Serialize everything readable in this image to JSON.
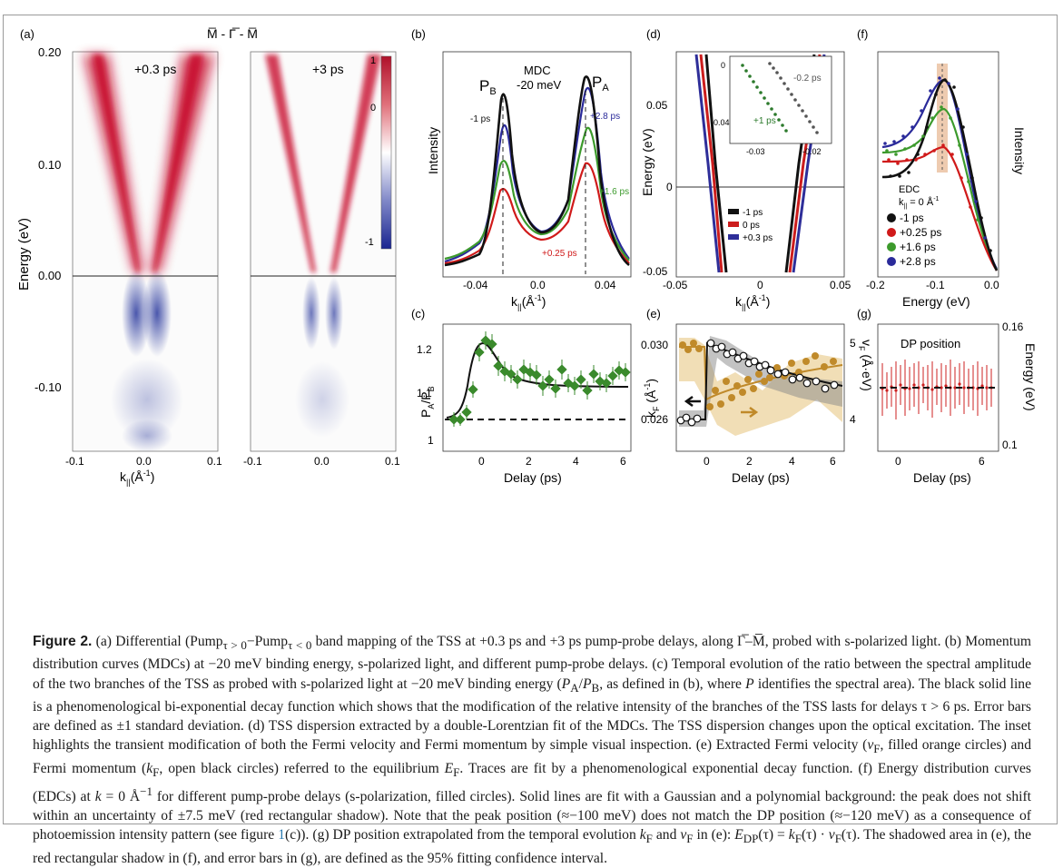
{
  "figure": {
    "panel_a": {
      "label": "(a)",
      "path_label": "M̅ - Γ̅ - M̅",
      "ylabel": "Energy (eV)",
      "xlabel": "k",
      "xlabel_sub": "||",
      "xlabel_unit": "(Å",
      "xlabel_unit_sup": "-1",
      "xlabel_unit_end": ")",
      "left_map_title": "+0.3 ps",
      "right_map_title": "+3 ps",
      "yticks": [
        "0.20",
        "0.10",
        "0.00",
        "-0.10"
      ],
      "xticks_left": [
        "-0.1",
        "0.0",
        "0.1"
      ],
      "xticks_right": [
        "-0.1",
        "0.0",
        "0.1"
      ],
      "colorbar_ticks": [
        "1",
        "0",
        "-1"
      ],
      "colors": {
        "positive": "#c8102e",
        "negative": "#2b3a9e"
      }
    },
    "panel_b": {
      "label": "(b)",
      "ylabel": "Intensity",
      "title_line1": "MDC",
      "title_line2": "-20 meV",
      "peak_left": "P",
      "peak_left_sub": "B",
      "peak_right": "P",
      "peak_right_sub": "A",
      "xlabel": "k",
      "xlabel_sub": "||",
      "xlabel_unit": "(Å",
      "xlabel_unit_sup": "-1",
      "xlabel_unit_end": ")",
      "xticks": [
        "-0.04",
        "0.0",
        "0.04"
      ],
      "annotations": [
        {
          "text": "-1 ps",
          "color": "#111111"
        },
        {
          "text": "+2.8 ps",
          "color": "#2a2a9a"
        },
        {
          "text": "+1.6 ps",
          "color": "#3c9a2c"
        },
        {
          "text": "+0.25 ps",
          "color": "#d01a1a"
        }
      ]
    },
    "panel_c": {
      "label": "(c)",
      "ylabel": "P",
      "ylabel_sub_a": "A",
      "ylabel_div": "/P",
      "ylabel_sub_b": "B",
      "xlabel": "Delay (ps)",
      "xticks": [
        "0",
        "2",
        "4",
        "6"
      ],
      "yticks": [
        "1.2",
        "1.1",
        "1"
      ],
      "colors": {
        "points": "#3a8a2c",
        "fit": "#1a1a1a"
      }
    },
    "panel_d": {
      "label": "(d)",
      "ylabel": "Energy (eV)",
      "xlabel": "k",
      "xlabel_sub": "||",
      "xlabel_unit": "(Å",
      "xlabel_unit_sup": "-1",
      "xlabel_unit_end": ")",
      "xticks": [
        "-0.05",
        "0",
        "0.05"
      ],
      "yticks": [
        "0.05",
        "0",
        "-0.05"
      ],
      "legend": [
        {
          "text": "-1 ps",
          "color": "#111111"
        },
        {
          "text": "0 ps",
          "color": "#cc1d1d"
        },
        {
          "text": "+0.3 ps",
          "color": "#2e2e99"
        }
      ],
      "inset": {
        "xticks": [
          "-0.03",
          "-0.02"
        ],
        "yticks": [
          "0",
          "-0.04"
        ],
        "labels": [
          {
            "text": "-0.2 ps",
            "color": "#555555"
          },
          {
            "text": "+1 ps",
            "color": "#2c7a2c"
          }
        ]
      }
    },
    "panel_e": {
      "label": "(e)",
      "ylabel_left": "k",
      "ylabel_left_sub": "F",
      "ylabel_left_unit": " (Å",
      "ylabel_left_sup": "-1",
      "ylabel_left_end": ")",
      "ylabel_right": "v",
      "ylabel_right_sub": "F",
      "ylabel_right_unit": " (Å·eV)",
      "xlabel": "Delay (ps)",
      "xticks": [
        "0",
        "2",
        "4",
        "6"
      ],
      "yticks_left": [
        "0.030",
        "0.026"
      ],
      "yticks_right": [
        "5",
        "4"
      ],
      "colors": {
        "vf": "#c08a2a",
        "kf": "#111111"
      }
    },
    "panel_f": {
      "label": "(f)",
      "ylabel": "Intensity",
      "xlabel": "Energy (eV)",
      "xticks": [
        "-0.2",
        "-0.1",
        "0.0"
      ],
      "legend_title": "EDC",
      "legend_subtitle": "k",
      "legend_subtitle_sub": "||",
      "legend_subtitle_rest": " = 0 Å",
      "legend_subtitle_sup": "-1",
      "legend": [
        {
          "text": "-1 ps",
          "color": "#111111"
        },
        {
          "text": "+0.25 ps",
          "color": "#d01a1a"
        },
        {
          "text": "+1.6 ps",
          "color": "#3c9a2c"
        },
        {
          "text": "+2.8 ps",
          "color": "#2a2a9a"
        }
      ]
    },
    "panel_g": {
      "label": "(g)",
      "title": "DP position",
      "ylabel": "Energy (eV)",
      "xlabel": "Delay (ps)",
      "xticks": [
        "0",
        "6"
      ],
      "yticks": [
        "0.16",
        "0.1"
      ],
      "colors": {
        "points": "#cc2020"
      }
    }
  },
  "caption": {
    "label": "Figure 2.",
    "segments": [
      " (a) Differential (Pump",
      "τ > 0",
      "−Pump",
      "τ < 0",
      " band mapping of the TSS at +0.3 ps and +3 ps pump-probe delays, along Γ̅–M̅, probed with s-polarized light. (b) Momentum distribution curves (MDCs) at −20 meV binding energy, s-polarized light, and different pump-probe delays. (c) Temporal evolution of the ratio between the spectral amplitude of the two branches of the TSS as probed with s-polarized light at −20 meV binding energy (",
      "P",
      "A",
      "/",
      "P",
      "B",
      ", as defined in (b), where ",
      "P",
      " identifies the spectral area). The black solid line is a phenomenological bi-exponential decay function which shows that the modification of the relative intensity of the branches of the TSS lasts for delays τ > 6 ps. Error bars are defined as ±1 standard deviation. (d) TSS dispersion extracted by a double-Lorentzian fit of the MDCs. The TSS dispersion changes upon the optical excitation. The inset highlights the transient modification of both the Fermi velocity and Fermi momentum by simple visual inspection. (e) Extracted Fermi velocity (",
      "v",
      "F",
      ", filled orange circles) and Fermi momentum (",
      "k",
      "F",
      ", open black circles) referred to the equilibrium ",
      "E",
      "F",
      ". Traces are fit by a phenomenological exponential decay function. (f) Energy distribution curves (EDCs) at ",
      "k",
      " = 0 Å",
      "−1",
      " for different pump-probe delays (s-polarization, filled circles). Solid lines are fit with a Gaussian and a polynomial background: the peak does not shift within an uncertainty of ±7.5 meV (red rectangular shadow). Note that the peak position (≈−100 meV) does not match the DP position (≈−120 meV) as a consequence of photoemission intensity pattern (see figure ",
      "1",
      "(c)). (g) DP position extrapolated from the temporal evolution ",
      "k",
      "F",
      " and ",
      "v",
      "F",
      " in (e): ",
      "E",
      "DP",
      "(τ) = ",
      "k",
      "F",
      "(τ) · ",
      "v",
      "F",
      "(τ). The shadowed area in (e), the red rectangular shadow in (f), and error bars in (g), are defined as the 95% fitting confidence interval."
    ]
  }
}
